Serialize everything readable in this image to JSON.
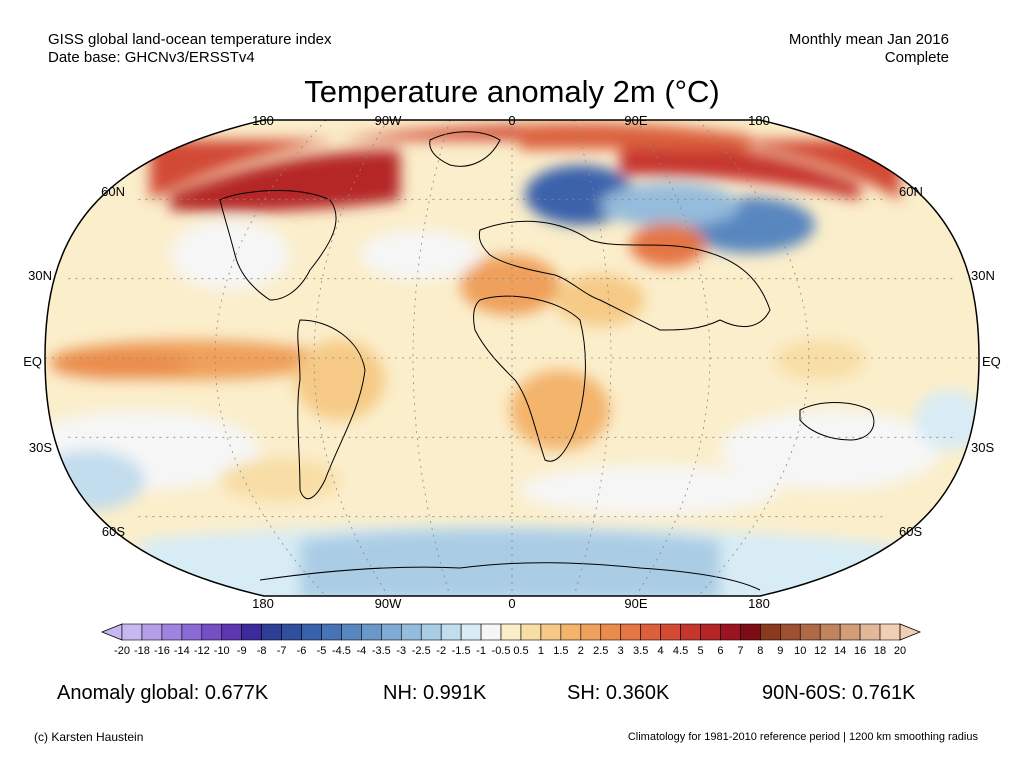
{
  "header": {
    "left_line1": "GISS global land-ocean temperature index",
    "left_line2": "Date base: GHCNv3/ERSSTv4",
    "right_line1": "Monthly mean Jan 2016",
    "right_line2": "Complete"
  },
  "title": "Temperature anomaly 2m (°C)",
  "map": {
    "projection": "Robinson",
    "lon_labels_top": [
      "180",
      "90W",
      "0",
      "90E",
      "180"
    ],
    "lon_labels_bottom": [
      "180",
      "90W",
      "0",
      "90E",
      "180"
    ],
    "lat_labels_left": [
      "60N",
      "30N",
      "EQ",
      "30S",
      "60S"
    ],
    "lat_labels_right": [
      "60N",
      "30N",
      "EQ",
      "30S",
      "60S"
    ]
  },
  "colorbar": {
    "ticks": [
      "-20",
      "-18",
      "-16",
      "-14",
      "-12",
      "-10",
      "-9",
      "-8",
      "-7",
      "-6",
      "-5",
      "-4.5",
      "-4",
      "-3.5",
      "-3",
      "-2.5",
      "-2",
      "-1.5",
      "-1",
      "-0.5",
      "0.5",
      "1",
      "1.5",
      "2",
      "2.5",
      "3",
      "3.5",
      "4",
      "4.5",
      "5",
      "6",
      "7",
      "8",
      "9",
      "10",
      "12",
      "14",
      "16",
      "18",
      "20"
    ],
    "colors": [
      "#c8b8f0",
      "#b39ee8",
      "#9f84e0",
      "#8a6ad4",
      "#7450c4",
      "#5e36b0",
      "#3d2a9c",
      "#2e3f98",
      "#30509e",
      "#3a62ab",
      "#4874b5",
      "#5886bf",
      "#6a98c9",
      "#7eaad3",
      "#94bcdc",
      "#aacde5",
      "#c2dded",
      "#d8ecf5",
      "#f6f6f6",
      "#fbeecb",
      "#f8dea6",
      "#f6ca86",
      "#f3b46c",
      "#efa05c",
      "#ea8c4e",
      "#e47644",
      "#dc603c",
      "#d24a34",
      "#c6362e",
      "#b52528",
      "#9c1420",
      "#7e0c16",
      "#8a3a1e",
      "#9c5230",
      "#ae6a46",
      "#c0845e",
      "#d29e78",
      "#e2b898",
      "#f0cfb4"
    ]
  },
  "stats": {
    "global": "Anomaly global: 0.677K",
    "nh": "NH: 0.991K",
    "sh": "SH: 0.360K",
    "band": "90N-60S: 0.761K"
  },
  "footer": {
    "left": "(c) Karsten Haustein",
    "right": "Climatology for 1981-2010 reference period | 1200 km smoothing radius"
  }
}
